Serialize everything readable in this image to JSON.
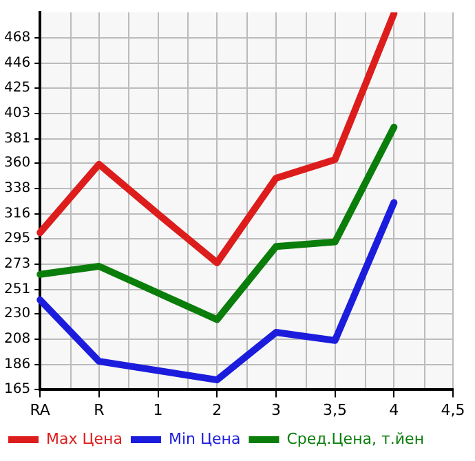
{
  "chart_data": {
    "type": "line",
    "categories": [
      "RA",
      "R",
      "1",
      "2",
      "3",
      "3,5",
      "4",
      "4,5"
    ],
    "series": [
      {
        "name": "Max Цена",
        "color": "#dd1c1c",
        "values": [
          300,
          359,
          316,
          274,
          347,
          363,
          489,
          null
        ]
      },
      {
        "name": "Min Цена",
        "color": "#1c1cdd",
        "values": [
          242,
          189,
          181,
          173,
          214,
          207,
          326,
          null
        ]
      },
      {
        "name": "Сред.Цена, т.йен",
        "color": "#0a7d0a",
        "values": [
          264,
          271,
          248,
          225,
          288,
          292,
          391,
          null
        ]
      }
    ],
    "ylim": [
      165,
      490
    ],
    "yticks": [
      165,
      186,
      208,
      230,
      251,
      273,
      295,
      316,
      338,
      360,
      381,
      403,
      425,
      446,
      468
    ],
    "grid": true,
    "legend": "bottom",
    "marker": "none",
    "line_style": "solid"
  }
}
